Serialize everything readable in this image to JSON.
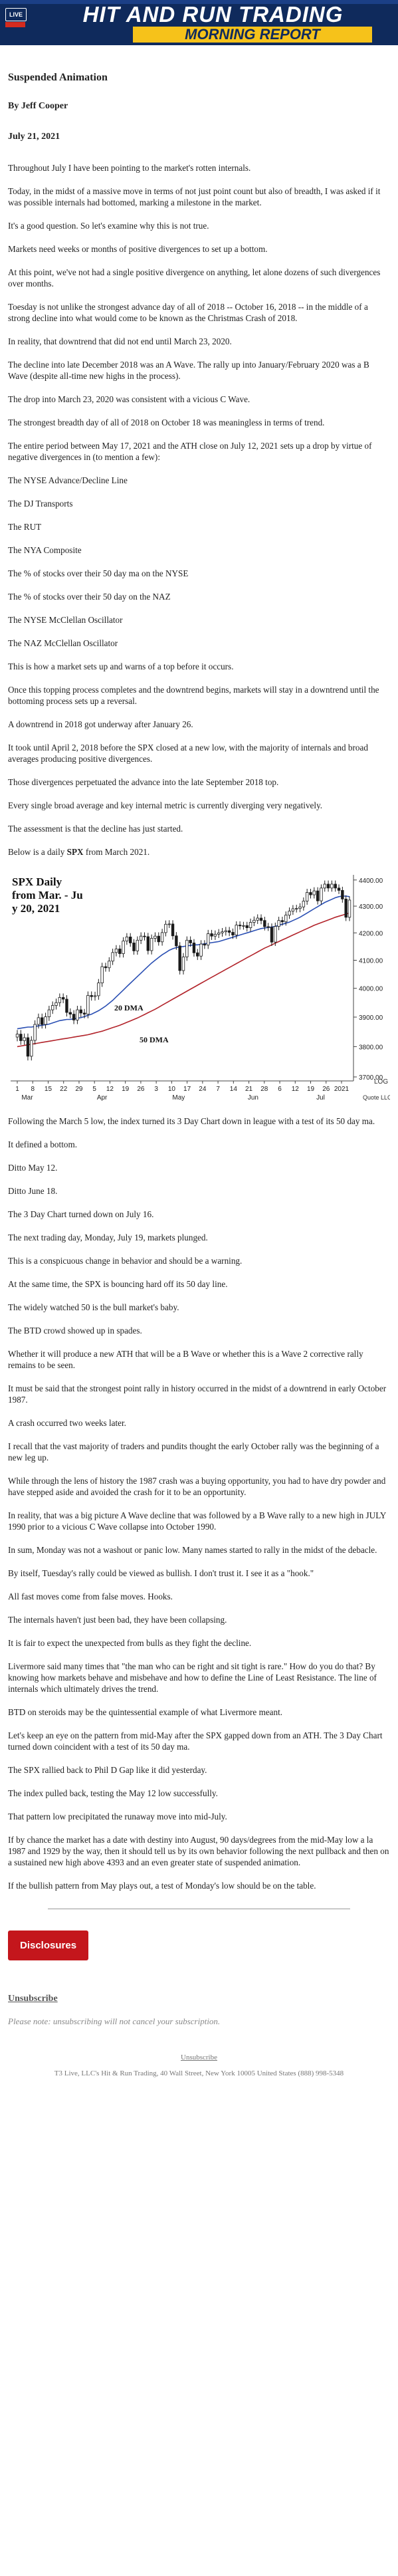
{
  "banner": {
    "live_badge": "LIVE",
    "title": "HIT AND RUN TRADING",
    "subtitle": "MORNING REPORT",
    "colors": {
      "navy": "#0f2a5c",
      "gold": "#f6c21a",
      "red": "#d52b1e"
    }
  },
  "article": {
    "title": "Suspended Animation",
    "author": "By Jeff Cooper",
    "date": "July 21, 2021",
    "paragraphs_a": [
      "Throughout July I have been pointing to the market's rotten internals.",
      "Today, in the midst of a massive move in terms of not just point count but also of breadth, I was asked if it was possible internals had bottomed, marking a milestone in the market.",
      "It's a good question. So let's examine why this is not true.",
      "Markets need weeks or months of positive divergences to set up a bottom.",
      "At this point, we've not had a single positive divergence on anything, let alone dozens of such divergences over months.",
      "Toesday is not unlike the strongest advance day of all of 2018 -- October 16, 2018 -- in the middle of a strong decline into what would come to be known as the Christmas Crash of 2018.",
      "In reality, that downtrend that did not end until March 23, 2020.",
      "The decline into late December 2018 was an A Wave. The rally up into January/February 2020 was a B Wave (despite all-time new highs in the process).",
      "The drop into March 23, 2020 was consistent with a vicious C Wave.",
      "The strongest breadth day of all of 2018 on October 18 was meaningless in terms of trend.",
      "The entire period between May 17, 2021 and the ATH close on July 12, 2021 sets up a drop by virtue of negative divergences in (to mention a few):",
      "The NYSE Advance/Decline Line",
      "The DJ Transports",
      "The RUT",
      "The NYA Composite",
      "The % of stocks over their 50 day ma on the NYSE",
      "The % of stocks over their 50 day on the NAZ",
      "The NYSE McClellan Oscillator",
      "The NAZ McClellan Oscillator",
      "This is how a market sets up and warns of a top before it occurs.",
      "Once this topping process completes and the downtrend begins, markets will stay in a downtrend until the bottoming process sets up a reversal.",
      "A downtrend in 2018 got underway after January 26.",
      "It took until April 2, 2018 before the SPX closed at a new low, with the majority of internals and broad averages producing positive divergences.",
      "Those divergences perpetuated the advance into the late September 2018 top.",
      "Every single broad average and key internal metric is currently diverging very negatively.",
      "The assessment is that the decline has just started."
    ],
    "chart_intro_prefix": "Below is a daily ",
    "chart_intro_bold": "SPX",
    "chart_intro_suffix": " from March 2021.",
    "paragraphs_b": [
      "Following the March 5 low, the index turned its 3 Day Chart down in league with a test of its 50 day ma.",
      "It defined a bottom.",
      "Ditto May 12.",
      "Ditto June 18.",
      "The 3 Day Chart turned down on July 16.",
      "The next trading day, Monday, July 19, markets plunged.",
      "This is a conspicuous change in behavior and should be a warning.",
      "At the same time, the SPX is bouncing hard off its 50 day line.",
      "The widely watched 50 is the bull market's baby.",
      "The BTD crowd showed up in spades.",
      "Whether it will produce a new ATH that will be a B Wave or whether this is a Wave 2 corrective rally remains to be seen.",
      "It must be said that the strongest point rally in history occurred in the midst of a downtrend in early October 1987.",
      "A crash occurred two weeks later.",
      "I recall that the vast majority of traders and pundits thought the early October rally was the beginning of a new leg up.",
      "While through the lens of history the 1987 crash was a buying opportunity, you had to have dry powder and have stepped aside and avoided the crash for it to be an opportunity.",
      "In reality, that was a big picture A Wave decline that was followed by a B Wave rally to a new high in JULY 1990 prior to a vicious C Wave collapse into October 1990.",
      "In sum, Monday was not a washout or panic low. Many names started to rally in the midst of the debacle.",
      "By itself, Tuesday's rally could be viewed as bullish. I don't trust it. I see it as a \"hook.\"",
      "All fast moves come from false moves. Hooks.",
      "The internals haven't just been bad, they have been collapsing.",
      "It is fair to expect the unexpected from bulls as they fight the decline.",
      "Livermore said many times that \"the man who can be right and sit tight is rare.\" How do you do that? By knowing how markets behave and misbehave and how to define the Line of Least Resistance. The line of internals which ultimately drives the trend.",
      "BTD on steroids may be the quintessential example of what Livermore meant.",
      "Let's keep an eye on the pattern from mid-May after the SPX gapped down from an ATH. The 3 Day Chart turned down coincident with a test of its 50 day ma.",
      "The SPX rallied back to Phil D Gap like it did yesterday.",
      "The index pulled back, testing the May 12 low successfully.",
      "That pattern low precipitated the runaway move into mid-July.",
      "If by chance the market has a date with destiny into August, 90 days/degrees from the mid-May low a la 1987 and 1929 by the way, then it should tell us by its own behavior following the next pullback and then on a sustained new high above 4393 and an even greater state of suspended animation.",
      "If the bullish pattern from May plays out, a test of Monday's low should be on the table."
    ]
  },
  "chart_data": {
    "type": "candlestick",
    "title": "SPX Daily from Mar. - July 20, 2021",
    "x_tick_labels": [
      "1",
      "8",
      "15",
      "22",
      "29",
      "5",
      "12",
      "19",
      "26",
      "3",
      "10",
      "17",
      "24",
      "7",
      "14",
      "21",
      "28",
      "6",
      "12",
      "19",
      "26",
      "2021"
    ],
    "month_labels": [
      "Mar",
      "Apr",
      "May",
      "Jun",
      "Jul"
    ],
    "y_tick_labels": [
      "4400.00",
      "4300.00",
      "4200.00",
      "4100.00",
      "4000.00",
      "3900.00",
      "3800.00",
      "3700.00"
    ],
    "ylim": [
      3700,
      4420
    ],
    "scale_label": "LOG",
    "source_label": "Quote LLC",
    "annotations": [
      "20 DMA",
      "50 DMA"
    ],
    "closes": [
      3842,
      3820,
      3830,
      3768,
      3821,
      3875,
      3898,
      3875,
      3901,
      3925,
      3940,
      3950,
      3968,
      3962,
      3916,
      3910,
      3890,
      3925,
      3914,
      3910,
      3975,
      3971,
      3974,
      4019,
      4077,
      4073,
      4097,
      4128,
      4141,
      4124,
      4170,
      4185,
      4163,
      4134,
      4173,
      4188,
      4186,
      4135,
      4180,
      4188,
      4167,
      4201,
      4232,
      4233,
      4189,
      4152,
      4063,
      4112,
      4173,
      4163,
      4127,
      4115,
      4159,
      4155,
      4197,
      4188,
      4195,
      4200,
      4204,
      4208,
      4202,
      4192,
      4229,
      4226,
      4227,
      4219,
      4239,
      4247,
      4255,
      4246,
      4223,
      4221,
      4166,
      4224,
      4246,
      4241,
      4266,
      4281,
      4290,
      4291,
      4297,
      4319,
      4352,
      4343,
      4358,
      4320,
      4369,
      4384,
      4369,
      4384,
      4369,
      4360,
      4327,
      4258,
      4323
    ],
    "ma20": [
      3860,
      3862,
      3864,
      3866,
      3866,
      3868,
      3870,
      3872,
      3874,
      3876,
      3880,
      3884,
      3888,
      3890,
      3892,
      3892,
      3894,
      3896,
      3898,
      3902,
      3906,
      3910,
      3916,
      3922,
      3930,
      3938,
      3948,
      3958,
      3970,
      3982,
      3994,
      4006,
      4018,
      4030,
      4042,
      4054,
      4066,
      4078,
      4090,
      4100,
      4110,
      4120,
      4128,
      4136,
      4142,
      4146,
      4148,
      4150,
      4152,
      4154,
      4156,
      4156,
      4158,
      4160,
      4162,
      4164,
      4166,
      4168,
      4172,
      4176,
      4180,
      4184,
      4188,
      4192,
      4196,
      4200,
      4204,
      4208,
      4212,
      4216,
      4218,
      4220,
      4222,
      4224,
      4228,
      4232,
      4236,
      4240,
      4246,
      4252,
      4258,
      4266,
      4274,
      4282,
      4290,
      4298,
      4306,
      4314,
      4320,
      4326,
      4332,
      4336,
      4338,
      4338,
      4336
    ],
    "ma50": [
      3800,
      3802,
      3804,
      3806,
      3808,
      3810,
      3812,
      3814,
      3816,
      3818,
      3820,
      3822,
      3824,
      3826,
      3828,
      3830,
      3832,
      3834,
      3836,
      3838,
      3840,
      3843,
      3846,
      3849,
      3852,
      3856,
      3860,
      3864,
      3868,
      3872,
      3877,
      3882,
      3887,
      3892,
      3897,
      3903,
      3909,
      3915,
      3921,
      3927,
      3934,
      3941,
      3948,
      3955,
      3962,
      3969,
      3976,
      3983,
      3990,
      3997,
      4004,
      4011,
      4018,
      4025,
      4032,
      4039,
      4046,
      4053,
      4060,
      4067,
      4074,
      4081,
      4088,
      4095,
      4102,
      4109,
      4116,
      4123,
      4130,
      4137,
      4144,
      4150,
      4156,
      4162,
      4168,
      4174,
      4180,
      4186,
      4192,
      4198,
      4204,
      4210,
      4216,
      4222,
      4228,
      4233,
      4238,
      4243,
      4248,
      4253,
      4258,
      4262,
      4266,
      4270,
      4274
    ],
    "colors": {
      "candles": "#1a1a1a",
      "ma20": "#2a4fb3",
      "ma50": "#b2232a"
    }
  },
  "disclosures": {
    "label": "Disclosures"
  },
  "unsubscribe": {
    "link": "Unsubscribe",
    "note": "Please note: unsubscribing will not cancel your subscription."
  },
  "footer": {
    "unsubscribe": "Unsubscribe",
    "address": "T3 Live, LLC's Hit & Run Trading, 40 Wall Street, New York 10005 United States (888) 998-5348"
  }
}
